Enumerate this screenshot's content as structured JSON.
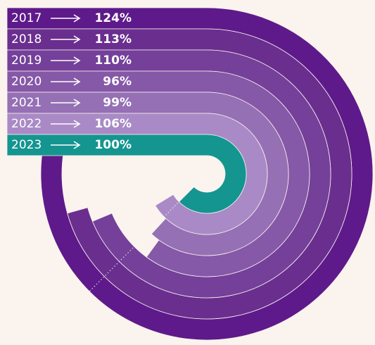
{
  "chart_data": {
    "type": "radial-bar",
    "categories": [
      "2017",
      "2018",
      "2019",
      "2020",
      "2021",
      "2022",
      "2023"
    ],
    "values": [
      124,
      113,
      110,
      96,
      99,
      106,
      100
    ],
    "value_labels": [
      "124%",
      "113%",
      "110%",
      "96%",
      "99%",
      "106%",
      "100%"
    ],
    "colors": [
      "#5e1a8a",
      "#6a2e8f",
      "#74409a",
      "#8658a8",
      "#9570b5",
      "#a98ac6",
      "#149590"
    ]
  }
}
